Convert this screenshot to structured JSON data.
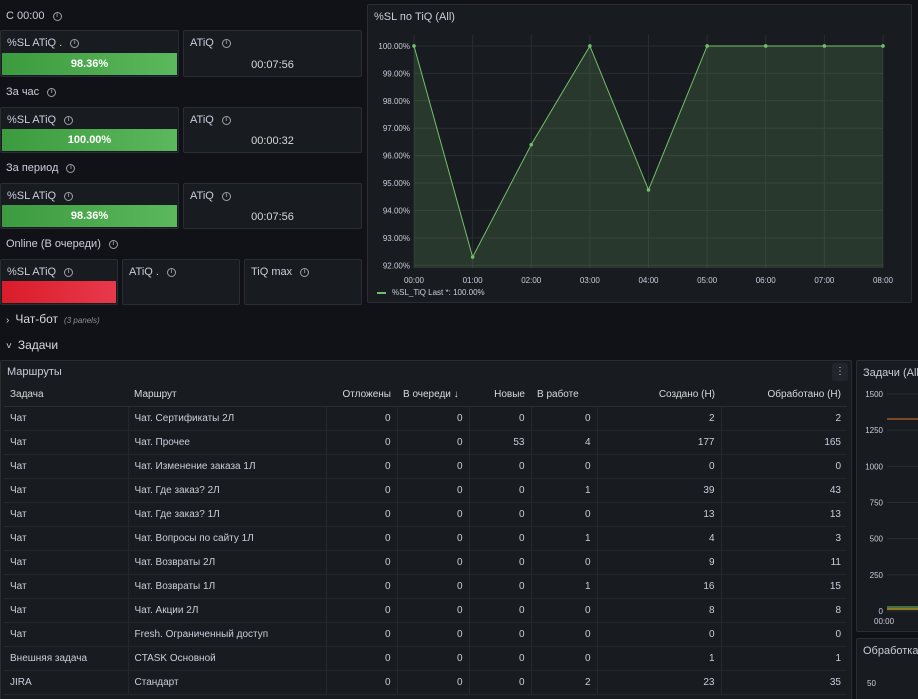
{
  "rows": {
    "since_midnight": "С 00:00",
    "per_hour": "За час",
    "period": "За период",
    "online": "Online (В очереди)"
  },
  "stats": {
    "sl_title": "%SL ATiQ .",
    "sl_title_plain": "%SL ATiQ",
    "atiq_title": "ATiQ",
    "atiq_dot_title": "ATiQ .",
    "tiq_max_title": "TiQ max",
    "since_midnight_sl": "98.36%",
    "since_midnight_atiq": "00:07:56",
    "per_hour_sl": "100.00%",
    "per_hour_atiq": "00:00:32",
    "period_sl": "98.36%",
    "period_atiq": "00:07:56",
    "online_sl_color": "#e02f44"
  },
  "chart_panel": {
    "title": "%SL по TiQ (All)",
    "legend": "%SL_TiQ  Last *: 100.00%"
  },
  "chart_data": {
    "type": "area",
    "x": [
      "00:00",
      "01:00",
      "02:00",
      "03:00",
      "04:00",
      "05:00",
      "06:00",
      "07:00",
      "08:00"
    ],
    "series": [
      {
        "name": "%SL_TiQ",
        "points": [
          {
            "x": "00:00",
            "y": 100.0
          },
          {
            "x": "01:00",
            "y": 92.3
          },
          {
            "x": "02:00",
            "y": 96.4
          },
          {
            "x": "03:00",
            "y": 100.0
          },
          {
            "x": "04:00",
            "y": 94.75
          },
          {
            "x": "05:00",
            "y": 100.0
          },
          {
            "x": "06:00",
            "y": 100.0
          },
          {
            "x": "07:00",
            "y": 100.0
          },
          {
            "x": "08:00",
            "y": 100.0
          }
        ]
      }
    ],
    "yticks": [
      "100.00%",
      "99.00%",
      "98.00%",
      "97.00%",
      "96.00%",
      "95.00%",
      "94.00%",
      "93.00%",
      "92.00%"
    ],
    "ylim": [
      91.9,
      100.4
    ],
    "grid": true,
    "legend_position": "bottom-left",
    "color": "#73bf69"
  },
  "sections": {
    "chatbot": "Чат-бот",
    "chatbot_sub": "(3 panels)",
    "tasks": "Задачи"
  },
  "routes_panel": {
    "title": "Маршруты",
    "menu_icon": "⋮",
    "columns": [
      "Задача",
      "Маршрут",
      "Отложены",
      "В очереди ↓",
      "Новые",
      "В работе",
      "Создано (Н)",
      "Обработано (Н)"
    ],
    "rows": [
      [
        "Чат",
        "Чат. Сертификаты 2Л",
        "0",
        "0",
        "0",
        "0",
        "2",
        "2"
      ],
      [
        "Чат",
        "Чат. Прочее",
        "0",
        "0",
        "53",
        "4",
        "177",
        "165"
      ],
      [
        "Чат",
        "Чат. Изменение заказа 1Л",
        "0",
        "0",
        "0",
        "0",
        "0",
        "0"
      ],
      [
        "Чат",
        "Чат. Где заказ? 2Л",
        "0",
        "0",
        "0",
        "1",
        "39",
        "43"
      ],
      [
        "Чат",
        "Чат. Где заказ? 1Л",
        "0",
        "0",
        "0",
        "0",
        "13",
        "13"
      ],
      [
        "Чат",
        "Чат. Вопросы по сайту 1Л",
        "0",
        "0",
        "0",
        "1",
        "4",
        "3"
      ],
      [
        "Чат",
        "Чат. Возвраты 2Л",
        "0",
        "0",
        "0",
        "0",
        "9",
        "11"
      ],
      [
        "Чат",
        "Чат. Возвраты 1Л",
        "0",
        "0",
        "0",
        "1",
        "16",
        "15"
      ],
      [
        "Чат",
        "Чат. Акции 2Л",
        "0",
        "0",
        "0",
        "0",
        "8",
        "8"
      ],
      [
        "Чат",
        "Fresh. Ограниченный доступ",
        "0",
        "0",
        "0",
        "0",
        "0",
        "0"
      ],
      [
        "Внешняя задача",
        "CTASK Основной",
        "0",
        "0",
        "0",
        "0",
        "1",
        "1"
      ],
      [
        "JIRA",
        "Стандарт",
        "0",
        "0",
        "0",
        "2",
        "23",
        "35"
      ]
    ]
  },
  "tasks_panel": {
    "title": "Задачи (All)",
    "yticks": [
      "1500",
      "1250",
      "1000",
      "750",
      "500",
      "250",
      "0"
    ],
    "xtick": "00:00"
  },
  "processing_panel": {
    "title": "Обработка",
    "ytick": "50"
  }
}
